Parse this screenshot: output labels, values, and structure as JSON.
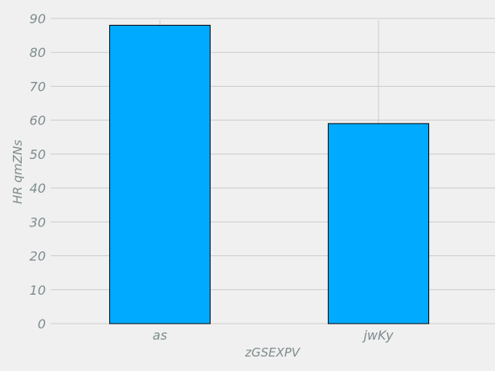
{
  "chart_data": {
    "type": "bar",
    "categories": [
      "as",
      "jwKy"
    ],
    "values": [
      88,
      59
    ],
    "title": "",
    "xlabel": "zGSEXPV",
    "ylabel": "HR qmZNs",
    "ylim": [
      0,
      90
    ],
    "yticks": [
      0,
      10,
      20,
      30,
      40,
      50,
      60,
      70,
      80,
      90
    ],
    "grid": true,
    "legend": "none",
    "colors": {
      "bar": "#00aaff",
      "bar_edge": "#000000",
      "grid": "#cbcbcb",
      "text": "#7f8c8d",
      "background": "#f0f0f0"
    }
  }
}
